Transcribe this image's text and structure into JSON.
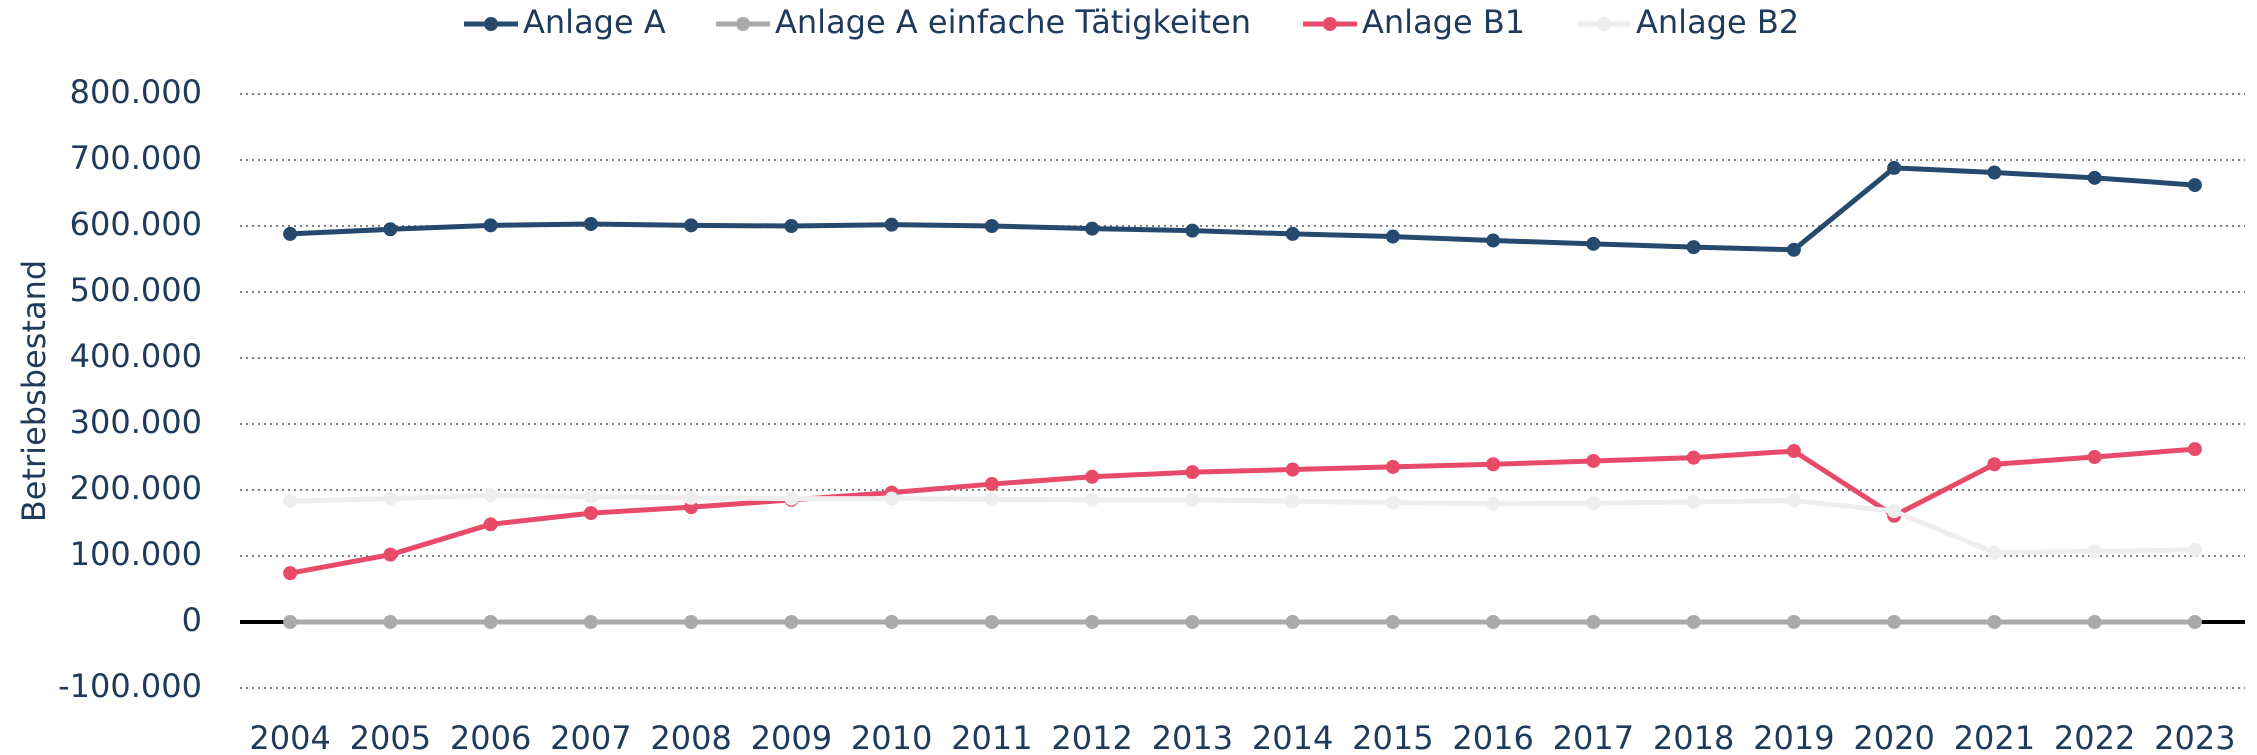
{
  "chart_data": {
    "type": "line",
    "y_label": "Betriebsbestand",
    "categories": [
      "2004",
      "2005",
      "2006",
      "2007",
      "2008",
      "2009",
      "2010",
      "2011",
      "2012",
      "2013",
      "2014",
      "2015",
      "2016",
      "2017",
      "2018",
      "2019",
      "2020",
      "2021",
      "2022",
      "2023"
    ],
    "series": [
      {
        "name": "Anlage A",
        "color": "#264a6e",
        "values": [
          588000,
          595000,
          601000,
          603000,
          601000,
          600000,
          602000,
          600000,
          596000,
          593000,
          588000,
          584000,
          578000,
          573000,
          568000,
          564000,
          688000,
          681000,
          673000,
          662000
        ]
      },
      {
        "name": "Anlage A einfache Tätigkeiten",
        "color": "#aaaaaa",
        "values": [
          0,
          0,
          0,
          0,
          0,
          0,
          0,
          0,
          0,
          0,
          0,
          0,
          0,
          0,
          0,
          0,
          0,
          0,
          0,
          0
        ]
      },
      {
        "name": "Anlage B1",
        "color": "#e84a6a",
        "values": [
          74000,
          102000,
          148000,
          165000,
          174000,
          185000,
          196000,
          209000,
          220000,
          227000,
          231000,
          235000,
          239000,
          244000,
          249000,
          259000,
          161000,
          239000,
          250000,
          262000
        ]
      },
      {
        "name": "Anlage B2",
        "color": "#eeeeee",
        "values": [
          183000,
          187000,
          192000,
          190000,
          188000,
          187000,
          187000,
          186000,
          185000,
          185000,
          183000,
          181000,
          179000,
          180000,
          182000,
          184000,
          168000,
          105000,
          107000,
          109000
        ]
      }
    ],
    "ylim": [
      -100000,
      800000
    ],
    "yticks": [
      {
        "value": -100000,
        "label": "-100.000"
      },
      0,
      {
        "value": 100000,
        "label": "100.000"
      },
      {
        "value": 200000,
        "label": "200.000"
      },
      {
        "value": 300000,
        "label": "300.000"
      },
      {
        "value": 400000,
        "label": "400.000"
      },
      {
        "value": 500000,
        "label": "500.000"
      },
      {
        "value": 600000,
        "label": "600.000"
      },
      {
        "value": 700000,
        "label": "700.000"
      },
      {
        "value": 800000,
        "label": "800.000"
      }
    ],
    "grid": true,
    "legend": "top"
  }
}
